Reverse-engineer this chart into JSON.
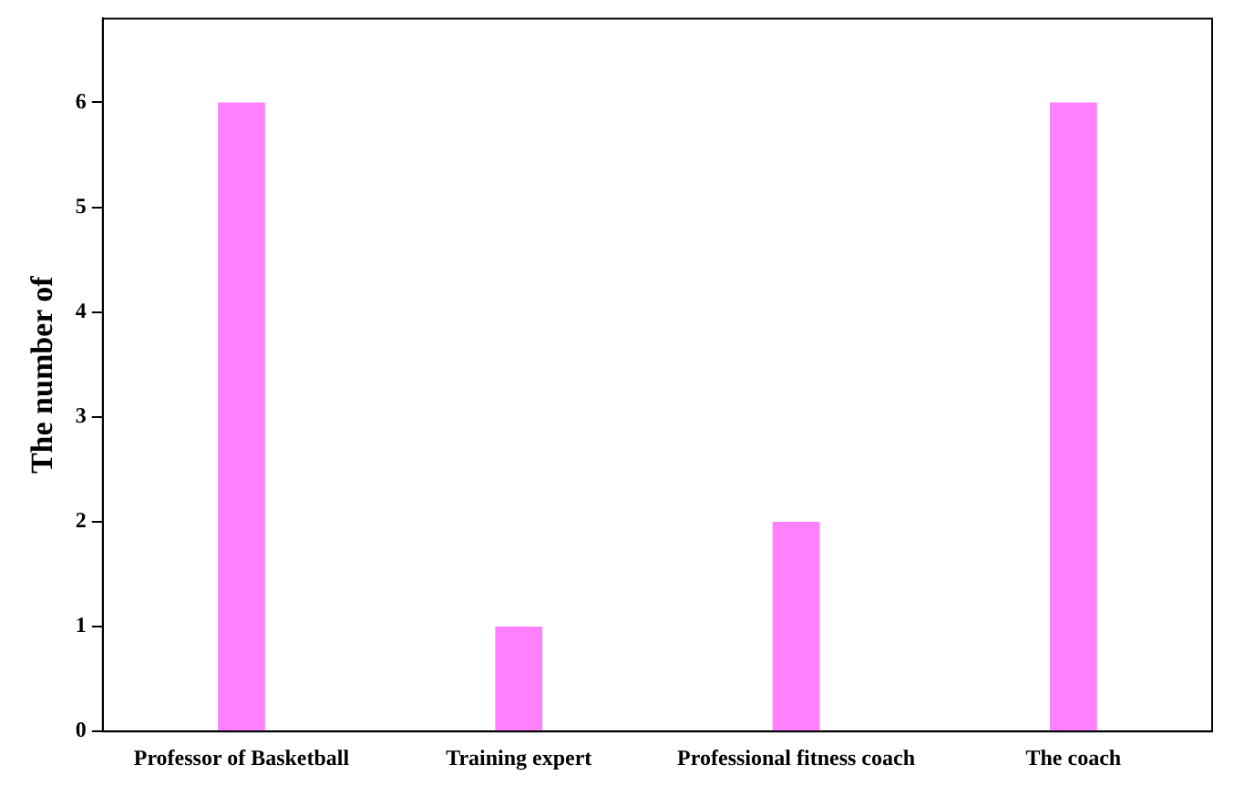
{
  "chart_data": {
    "type": "bar",
    "ylabel": "The number of",
    "categories": [
      "Professor of Basketball",
      "Training expert",
      "Professional fitness coach",
      "The coach"
    ],
    "values": [
      6,
      1,
      2,
      6
    ],
    "color": "#ff80ff",
    "ylim": [
      0,
      6.8
    ],
    "yticks": [
      0,
      1,
      2,
      3,
      4,
      5,
      6
    ],
    "grid": false,
    "legend": false
  }
}
